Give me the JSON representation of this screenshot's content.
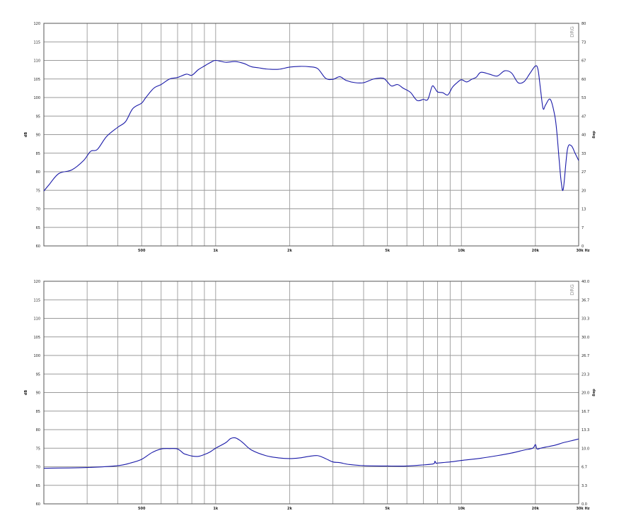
{
  "chart_data": [
    {
      "type": "line",
      "title": "",
      "ylabel": "dB",
      "y2label": "deg",
      "xlabel": "",
      "xscale": "log",
      "xlim": [
        200,
        30000
      ],
      "ylim": [
        60,
        120
      ],
      "y2lim": [
        0,
        80
      ],
      "grid": true,
      "watermark": "DRG",
      "xticks": [
        {
          "value": 500,
          "label": "500"
        },
        {
          "value": 1000,
          "label": "1k"
        },
        {
          "value": 2000,
          "label": "2k"
        },
        {
          "value": 5000,
          "label": "5k"
        },
        {
          "value": 10000,
          "label": "10k"
        },
        {
          "value": 20000,
          "label": "20k"
        },
        {
          "value": 30000,
          "label": "30k Hz"
        }
      ],
      "yticks": [
        "60",
        "65",
        "70",
        "75",
        "80",
        "85",
        "90",
        "95",
        "100",
        "105",
        "110",
        "115",
        "120"
      ],
      "y2ticks": [
        "0",
        "7",
        "13",
        "20",
        "27",
        "33",
        "40",
        "47",
        "53",
        "60",
        "67",
        "73",
        "80"
      ],
      "series": [
        {
          "color": "#1a1aa8",
          "x": [
            200,
            210,
            230,
            260,
            290,
            310,
            330,
            360,
            400,
            430,
            460,
            500,
            520,
            560,
            600,
            650,
            700,
            760,
            800,
            850,
            900,
            950,
            1000,
            1100,
            1200,
            1300,
            1400,
            1500,
            1600,
            1800,
            2000,
            2200,
            2400,
            2600,
            2800,
            3000,
            3200,
            3400,
            3700,
            4000,
            4400,
            4800,
            5000,
            5200,
            5500,
            5800,
            6200,
            6600,
            7000,
            7300,
            7600,
            7800,
            8000,
            8400,
            8800,
            9200,
            9600,
            10000,
            10500,
            11000,
            11500,
            12000,
            13000,
            14000,
            15000,
            16000,
            17000,
            18000,
            19000,
            20000,
            20500,
            21000,
            21500,
            22000,
            23000,
            24000,
            24500,
            25000,
            25500,
            26000,
            27000,
            28000,
            29000,
            30000
          ],
          "values": [
            74.8,
            76.5,
            79.5,
            80.5,
            83,
            85.5,
            86,
            89.5,
            92,
            93.5,
            97,
            98.5,
            100,
            102.5,
            103.5,
            105,
            105.4,
            106.3,
            106,
            107.5,
            108.5,
            109.4,
            110,
            109.5,
            109.7,
            109.2,
            108.3,
            108,
            107.7,
            107.6,
            108.2,
            108.4,
            108.3,
            107.8,
            105.2,
            104.9,
            105.6,
            104.6,
            104,
            104,
            105,
            105.2,
            104.2,
            103.1,
            103.5,
            102.5,
            101.4,
            99.2,
            99.5,
            99.5,
            103,
            102.5,
            101.5,
            101.3,
            100.7,
            102.8,
            104,
            104.8,
            104.2,
            104.9,
            105.5,
            106.8,
            106.3,
            105.8,
            107.2,
            106.6,
            104,
            104.3,
            106.5,
            108.5,
            107.5,
            102,
            97,
            98,
            99.5,
            95,
            90,
            83,
            77,
            75.5,
            86,
            87,
            85,
            83
          ]
        }
      ]
    },
    {
      "type": "line",
      "title": "",
      "ylabel": "dB",
      "y2label": "deg",
      "xlabel": "",
      "xscale": "log",
      "xlim": [
        200,
        30000
      ],
      "ylim": [
        60,
        120
      ],
      "y2lim": [
        0,
        40
      ],
      "grid": true,
      "watermark": "DRG",
      "xticks": [
        {
          "value": 500,
          "label": "500"
        },
        {
          "value": 1000,
          "label": "1k"
        },
        {
          "value": 2000,
          "label": "2k"
        },
        {
          "value": 5000,
          "label": "5k"
        },
        {
          "value": 10000,
          "label": "10k"
        },
        {
          "value": 20000,
          "label": "20k"
        },
        {
          "value": 30000,
          "label": "30k Hz"
        }
      ],
      "yticks": [
        "60",
        "65",
        "70",
        "75",
        "80",
        "85",
        "90",
        "95",
        "100",
        "105",
        "110",
        "115",
        "120"
      ],
      "y2ticks": [
        "0.0",
        "3.3",
        "6.7",
        "10.0",
        "13.3",
        "16.7",
        "20.0",
        "23.3",
        "26.7",
        "30.0",
        "33.3",
        "36.7",
        "40.0"
      ],
      "series": [
        {
          "color": "#1a1aa8",
          "x": [
            200,
            300,
            400,
            450,
            500,
            550,
            600,
            650,
            700,
            740,
            760,
            800,
            850,
            900,
            950,
            1000,
            1100,
            1150,
            1200,
            1250,
            1300,
            1400,
            1600,
            1800,
            2000,
            2200,
            2400,
            2600,
            2800,
            3000,
            3200,
            3500,
            4000,
            5000,
            6000,
            7000,
            7700,
            7800,
            7900,
            8000,
            9000,
            10000,
            12000,
            14000,
            16000,
            18000,
            19500,
            20000,
            20300,
            21000,
            22000,
            24000,
            26000,
            28000,
            30000
          ],
          "values": [
            69.6,
            69.8,
            70.3,
            71,
            72,
            73.8,
            74.8,
            74.9,
            74.8,
            73.6,
            73.3,
            72.9,
            72.8,
            73.3,
            74,
            75,
            76.5,
            77.6,
            77.8,
            77.2,
            76.3,
            74.5,
            73,
            72.4,
            72.2,
            72.4,
            72.8,
            73,
            72.2,
            71.3,
            71.1,
            70.6,
            70.3,
            70.2,
            70.2,
            70.5,
            70.8,
            71.5,
            70.9,
            71,
            71.3,
            71.7,
            72.3,
            73,
            73.7,
            74.5,
            75,
            76,
            74.8,
            75,
            75.3,
            75.8,
            76.5,
            77,
            77.5
          ]
        }
      ]
    }
  ]
}
